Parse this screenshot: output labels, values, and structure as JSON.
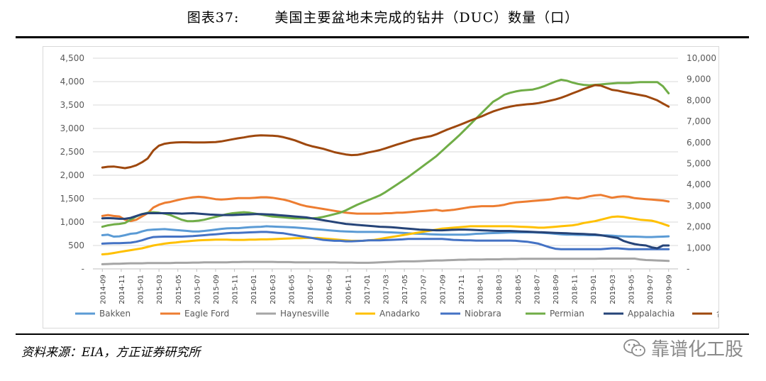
{
  "figure": {
    "label": "图表37:",
    "title": "美国主要盆地未完成的钻井（DUC）数量（口）",
    "source": "资料来源：EIA，方正证券研究所",
    "watermark": "靠谱化工股",
    "watermark_icon": "wechat-icon"
  },
  "chart_data": {
    "type": "line",
    "title": "美国主要盆地未完成的钻井（DUC）数量（口）",
    "ylim": [
      0,
      4500
    ],
    "yticks": [
      0,
      500,
      1000,
      1500,
      2000,
      2500,
      3000,
      3500,
      4000,
      4500
    ],
    "ytick_labels": [
      "-",
      "500",
      "1,000",
      "1,500",
      "2,000",
      "2,500",
      "3,000",
      "3,500",
      "4,000",
      "4,500"
    ],
    "y2lim": [
      0,
      10000
    ],
    "y2ticks": [
      0,
      1000,
      2000,
      3000,
      4000,
      5000,
      6000,
      7000,
      8000,
      9000,
      10000
    ],
    "y2tick_labels": [
      "-",
      "1,000",
      "2,000",
      "3,000",
      "4,000",
      "5,000",
      "6,000",
      "7,000",
      "8,000",
      "9,000",
      "10,000"
    ],
    "xtick_labels": [
      "2014-09",
      "2014-11",
      "2015-01",
      "2015-03",
      "2015-05",
      "2015-07",
      "2015-09",
      "2015-11",
      "2016-01",
      "2016-03",
      "2016-05",
      "2016-07",
      "2016-09",
      "2016-11",
      "2017-01",
      "2017-03",
      "2017-05",
      "2017-07",
      "2017-09",
      "2017-11",
      "2018-01",
      "2018-03",
      "2018-05",
      "2018-07",
      "2018-09",
      "2018-11",
      "2019-01",
      "2019-03",
      "2019-05",
      "2019-07",
      "2019-09"
    ],
    "grid": true,
    "legend_position": "bottom",
    "series": [
      {
        "name": "Bakken",
        "color": "#5b9bd5",
        "axis": "left",
        "values": [
          720,
          730,
          690,
          695,
          720,
          750,
          760,
          800,
          830,
          840,
          845,
          850,
          840,
          830,
          820,
          810,
          800,
          800,
          810,
          825,
          840,
          855,
          865,
          870,
          870,
          880,
          890,
          895,
          900,
          910,
          905,
          900,
          895,
          890,
          885,
          875,
          865,
          855,
          845,
          835,
          825,
          815,
          805,
          800,
          795,
          790,
          790,
          790,
          790,
          790,
          785,
          780,
          775,
          770,
          760,
          755,
          750,
          745,
          740,
          735,
          730,
          730,
          730,
          730,
          730,
          740,
          750,
          755,
          760,
          765,
          770,
          775,
          780,
          780,
          780,
          780,
          780,
          775,
          770,
          760,
          750,
          740,
          730,
          730,
          725,
          725,
          720,
          720,
          715,
          715,
          710,
          700,
          695,
          690,
          690,
          685,
          680,
          680,
          685,
          690,
          695
        ]
      },
      {
        "name": "Eagle Ford",
        "color": "#ed7d31",
        "axis": "left",
        "values": [
          1130,
          1150,
          1130,
          1120,
          1050,
          1020,
          1050,
          1120,
          1190,
          1310,
          1370,
          1410,
          1430,
          1460,
          1490,
          1510,
          1530,
          1540,
          1530,
          1510,
          1490,
          1480,
          1490,
          1500,
          1510,
          1510,
          1510,
          1520,
          1530,
          1530,
          1520,
          1500,
          1480,
          1450,
          1410,
          1370,
          1340,
          1320,
          1300,
          1280,
          1260,
          1240,
          1220,
          1200,
          1190,
          1180,
          1180,
          1180,
          1180,
          1180,
          1190,
          1190,
          1200,
          1200,
          1210,
          1220,
          1230,
          1240,
          1250,
          1260,
          1240,
          1250,
          1260,
          1280,
          1300,
          1320,
          1330,
          1340,
          1340,
          1340,
          1350,
          1370,
          1400,
          1420,
          1430,
          1440,
          1450,
          1460,
          1470,
          1480,
          1500,
          1520,
          1530,
          1510,
          1500,
          1520,
          1550,
          1570,
          1580,
          1550,
          1520,
          1540,
          1550,
          1540,
          1510,
          1500,
          1490,
          1480,
          1470,
          1460,
          1440
        ]
      },
      {
        "name": "Haynesville",
        "color": "#a5a5a5",
        "axis": "left",
        "values": [
          100,
          105,
          110,
          110,
          115,
          120,
          120,
          120,
          125,
          125,
          125,
          125,
          125,
          130,
          130,
          130,
          135,
          135,
          140,
          140,
          140,
          140,
          140,
          145,
          145,
          150,
          150,
          150,
          150,
          150,
          150,
          145,
          145,
          145,
          140,
          140,
          140,
          140,
          140,
          140,
          140,
          140,
          135,
          135,
          135,
          130,
          130,
          130,
          135,
          140,
          145,
          150,
          155,
          160,
          160,
          160,
          165,
          170,
          175,
          180,
          180,
          185,
          190,
          195,
          195,
          200,
          200,
          200,
          205,
          205,
          205,
          210,
          210,
          210,
          215,
          215,
          215,
          215,
          215,
          215,
          215,
          215,
          215,
          215,
          215,
          215,
          215,
          215,
          220,
          220,
          220,
          220,
          220,
          220,
          220,
          200,
          190,
          185,
          180,
          175,
          170
        ]
      },
      {
        "name": "Anadarko",
        "color": "#ffc000",
        "axis": "left",
        "values": [
          310,
          320,
          340,
          360,
          380,
          400,
          420,
          440,
          470,
          500,
          520,
          540,
          555,
          565,
          580,
          590,
          600,
          610,
          615,
          620,
          625,
          625,
          625,
          620,
          620,
          620,
          625,
          625,
          630,
          630,
          635,
          640,
          645,
          650,
          655,
          655,
          660,
          660,
          660,
          650,
          640,
          630,
          620,
          610,
          600,
          600,
          600,
          610,
          620,
          640,
          660,
          680,
          700,
          720,
          740,
          760,
          780,
          800,
          820,
          840,
          860,
          870,
          880,
          890,
          900,
          910,
          910,
          910,
          910,
          910,
          910,
          910,
          910,
          905,
          900,
          895,
          890,
          880,
          880,
          890,
          900,
          910,
          920,
          930,
          950,
          980,
          1000,
          1020,
          1050,
          1080,
          1110,
          1120,
          1110,
          1090,
          1070,
          1050,
          1040,
          1030,
          1000,
          960,
          920
        ]
      },
      {
        "name": "Niobrara",
        "color": "#4472c4",
        "axis": "left",
        "values": [
          540,
          545,
          550,
          550,
          555,
          560,
          580,
          610,
          650,
          680,
          685,
          690,
          690,
          690,
          690,
          695,
          700,
          710,
          720,
          730,
          740,
          750,
          760,
          770,
          770,
          775,
          780,
          785,
          790,
          790,
          780,
          770,
          760,
          740,
          720,
          700,
          680,
          660,
          640,
          620,
          610,
          600,
          600,
          590,
          590,
          595,
          600,
          610,
          610,
          610,
          615,
          620,
          625,
          630,
          640,
          640,
          640,
          640,
          640,
          640,
          640,
          630,
          620,
          615,
          610,
          610,
          605,
          605,
          605,
          605,
          605,
          605,
          605,
          600,
          590,
          580,
          560,
          540,
          500,
          460,
          430,
          420,
          420,
          420,
          420,
          420,
          420,
          420,
          420,
          430,
          440,
          440,
          430,
          420,
          420,
          420,
          420,
          420,
          420,
          420,
          420
        ]
      },
      {
        "name": "Permian",
        "color": "#70ad47",
        "axis": "left",
        "values": [
          900,
          930,
          950,
          960,
          980,
          1050,
          1120,
          1170,
          1200,
          1210,
          1200,
          1180,
          1150,
          1100,
          1050,
          1020,
          1020,
          1030,
          1050,
          1080,
          1110,
          1140,
          1170,
          1190,
          1200,
          1210,
          1200,
          1180,
          1160,
          1140,
          1120,
          1110,
          1100,
          1090,
          1080,
          1080,
          1080,
          1080,
          1090,
          1110,
          1140,
          1170,
          1200,
          1250,
          1310,
          1370,
          1420,
          1470,
          1520,
          1570,
          1640,
          1720,
          1800,
          1880,
          1960,
          2050,
          2140,
          2230,
          2320,
          2410,
          2520,
          2630,
          2740,
          2850,
          2970,
          3090,
          3210,
          3330,
          3450,
          3570,
          3640,
          3720,
          3760,
          3790,
          3810,
          3820,
          3830,
          3860,
          3900,
          3950,
          4000,
          4040,
          4020,
          3980,
          3950,
          3930,
          3920,
          3930,
          3940,
          3950,
          3960,
          3970,
          3970,
          3970,
          3980,
          3990,
          3990,
          3990,
          3990,
          3900,
          3750
        ]
      },
      {
        "name": "Appalachia",
        "color": "#264478",
        "axis": "left",
        "values": [
          1080,
          1085,
          1080,
          1070,
          1070,
          1090,
          1130,
          1170,
          1190,
          1190,
          1190,
          1190,
          1190,
          1185,
          1180,
          1185,
          1190,
          1180,
          1170,
          1160,
          1155,
          1150,
          1150,
          1150,
          1155,
          1160,
          1165,
          1170,
          1170,
          1165,
          1160,
          1150,
          1140,
          1130,
          1120,
          1110,
          1100,
          1080,
          1060,
          1040,
          1020,
          1000,
          980,
          960,
          950,
          940,
          930,
          920,
          910,
          900,
          895,
          890,
          880,
          870,
          860,
          850,
          840,
          835,
          830,
          825,
          825,
          830,
          835,
          840,
          840,
          835,
          830,
          825,
          820,
          815,
          810,
          810,
          810,
          805,
          800,
          795,
          790,
          785,
          780,
          775,
          770,
          765,
          760,
          755,
          750,
          745,
          740,
          735,
          720,
          700,
          680,
          660,
          600,
          560,
          530,
          510,
          500,
          460,
          440,
          500,
          500
        ]
      },
      {
        "name": "合计（右轴）",
        "color": "#9e480e",
        "axis": "right",
        "values": [
          4810,
          4850,
          4860,
          4820,
          4780,
          4830,
          4920,
          5060,
          5240,
          5620,
          5850,
          5940,
          5980,
          6000,
          6010,
          6010,
          6000,
          6000,
          6000,
          6010,
          6020,
          6050,
          6100,
          6150,
          6200,
          6240,
          6290,
          6320,
          6340,
          6330,
          6320,
          6300,
          6250,
          6180,
          6100,
          6000,
          5900,
          5820,
          5760,
          5700,
          5620,
          5540,
          5480,
          5430,
          5400,
          5410,
          5460,
          5530,
          5580,
          5640,
          5720,
          5810,
          5900,
          5980,
          6060,
          6140,
          6200,
          6250,
          6300,
          6390,
          6510,
          6620,
          6720,
          6820,
          6930,
          7040,
          7140,
          7240,
          7360,
          7470,
          7560,
          7640,
          7700,
          7750,
          7780,
          7810,
          7830,
          7870,
          7920,
          7980,
          8040,
          8120,
          8220,
          8330,
          8430,
          8540,
          8630,
          8720,
          8700,
          8600,
          8500,
          8460,
          8400,
          8350,
          8300,
          8250,
          8200,
          8100,
          8000,
          7850,
          7700
        ]
      }
    ]
  }
}
